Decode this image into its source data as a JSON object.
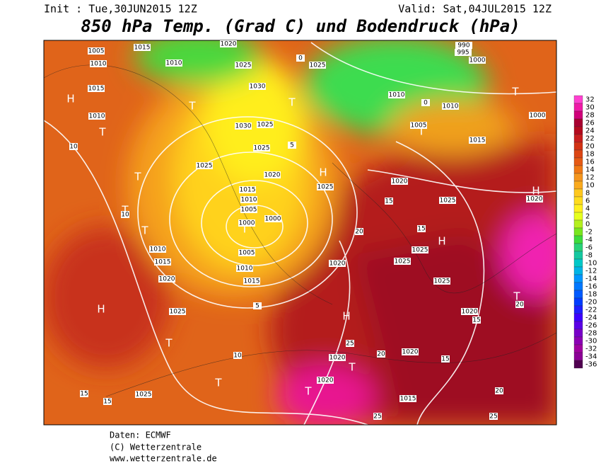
{
  "header": {
    "init": "Init : Tue,30JUN2015 12Z",
    "valid": "Valid: Sat,04JUL2015 12Z",
    "title": "850 hPa Temp. (Grad C) und Bodendruck (hPa)"
  },
  "colorbar": {
    "labels": [
      32,
      30,
      28,
      26,
      24,
      22,
      20,
      18,
      16,
      14,
      12,
      10,
      8,
      6,
      4,
      2,
      0,
      -2,
      -4,
      -6,
      -8,
      -10,
      -12,
      -14,
      -16,
      -18,
      -20,
      -22,
      -24,
      -26,
      -28,
      -30,
      -32,
      -34,
      -36
    ],
    "colors": [
      "#ff40d0",
      "#f01aa8",
      "#d0007a",
      "#a80030",
      "#b40a1e",
      "#c81e1e",
      "#d23214",
      "#dc4614",
      "#e65a14",
      "#f07814",
      "#f5961e",
      "#faaa1e",
      "#ffc81e",
      "#ffdc1e",
      "#fff01e",
      "#e6ff1e",
      "#b4f01e",
      "#78e61e",
      "#3cdc3c",
      "#28d278",
      "#14c8a0",
      "#00c8c8",
      "#00b4e6",
      "#0096ff",
      "#0078ff",
      "#005aff",
      "#003cff",
      "#1e1eff",
      "#3c00ff",
      "#5a00e6",
      "#7800c8",
      "#8c00b4",
      "#a000a0",
      "#8c0096",
      "#500050"
    ]
  },
  "map": {
    "labels": [
      "1005",
      "1010",
      "1015",
      "1010",
      "1020",
      "1025",
      "1030",
      "1030",
      "1025",
      "1025",
      "1025",
      "1020",
      "1015",
      "1010",
      "1005",
      "1000",
      "1000",
      "1005",
      "1010",
      "1015",
      "1010",
      "1015",
      "1020",
      "1025",
      "1025",
      "1020",
      "1025",
      "1025",
      "1010",
      "1010",
      "1005",
      "1015",
      "1000",
      "1020",
      "1025",
      "1025",
      "1025",
      "1025",
      "1020",
      "1020",
      "1020",
      "1020",
      "1020",
      "1015",
      "990",
      "995",
      "1000",
      "1015",
      "1010",
      "H",
      "T",
      "H",
      "T",
      "T",
      "T",
      "T",
      "T",
      "H",
      "T",
      "T",
      "T",
      "T",
      "H",
      "T",
      "T",
      "H",
      "H",
      "T",
      "T",
      "10",
      "10",
      "10",
      "15",
      "15",
      "5",
      "20",
      "15",
      "15",
      "20",
      "25",
      "25",
      "15",
      "20",
      "25",
      "0",
      "0",
      "5",
      "20",
      "15"
    ]
  },
  "footer": {
    "source": "Daten: ECMWF",
    "copyright": "(C) Wetterzentrale",
    "url": "www.wetterzentrale.de"
  }
}
